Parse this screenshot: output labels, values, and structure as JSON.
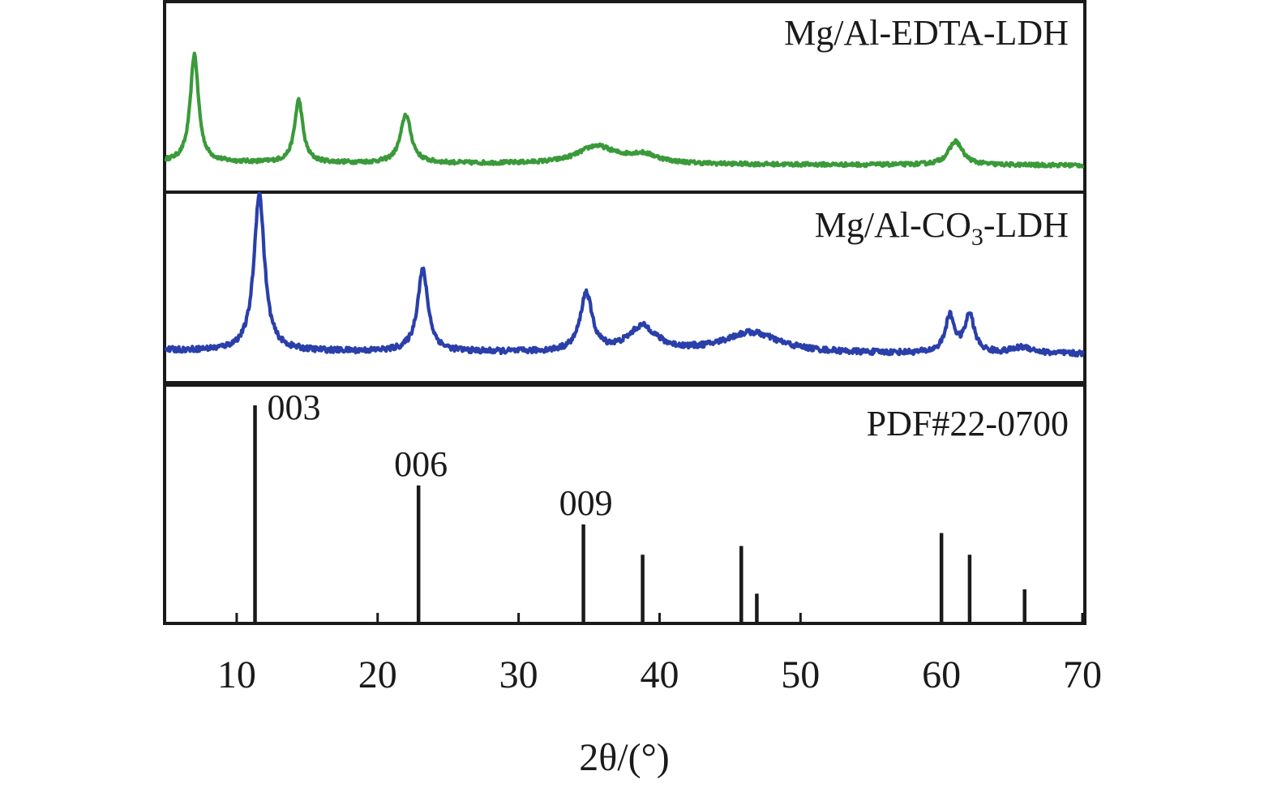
{
  "chart_data": {
    "type": "line",
    "xlabel": "2θ/(°)",
    "xlim": [
      5,
      70
    ],
    "x_ticks": [
      "10",
      "20",
      "30",
      "40",
      "50",
      "60",
      "70"
    ],
    "grid": false,
    "panels": [
      {
        "label": "Mg/Al-EDTA-LDH",
        "color": "#3a9a3a",
        "background": 0.04,
        "peaks": [
          {
            "x": 7.0,
            "height": 1.0,
            "width": 0.35
          },
          {
            "x": 14.4,
            "height": 0.58,
            "width": 0.35
          },
          {
            "x": 22.0,
            "height": 0.45,
            "width": 0.45
          },
          {
            "x": 35.5,
            "height": 0.16,
            "width": 1.6
          },
          {
            "x": 38.8,
            "height": 0.08,
            "width": 1.4
          },
          {
            "x": 61.0,
            "height": 0.22,
            "width": 0.6
          }
        ]
      },
      {
        "label_main": "Mg/Al-CO",
        "label_sub": "3",
        "label_tail": "-LDH",
        "color": "#2a3faa",
        "background": 0.03,
        "peaks": [
          {
            "x": 11.6,
            "height": 1.0,
            "width": 0.45
          },
          {
            "x": 23.2,
            "height": 0.52,
            "width": 0.45
          },
          {
            "x": 34.8,
            "height": 0.37,
            "width": 0.5
          },
          {
            "x": 38.8,
            "height": 0.16,
            "width": 1.2
          },
          {
            "x": 46.5,
            "height": 0.13,
            "width": 2.4
          },
          {
            "x": 60.6,
            "height": 0.23,
            "width": 0.4
          },
          {
            "x": 62.0,
            "height": 0.24,
            "width": 0.4
          },
          {
            "x": 65.8,
            "height": 0.04,
            "width": 0.9
          }
        ]
      }
    ],
    "reference": {
      "label": "PDF#22-0700",
      "lines": [
        {
          "x": 11.3,
          "intensity": 1.0,
          "hkl": "003"
        },
        {
          "x": 22.9,
          "intensity": 0.63,
          "hkl": "006"
        },
        {
          "x": 34.6,
          "intensity": 0.45,
          "hkl": "009"
        },
        {
          "x": 38.8,
          "intensity": 0.31,
          "hkl": ""
        },
        {
          "x": 45.8,
          "intensity": 0.35,
          "hkl": ""
        },
        {
          "x": 46.9,
          "intensity": 0.13,
          "hkl": ""
        },
        {
          "x": 60.0,
          "intensity": 0.41,
          "hkl": ""
        },
        {
          "x": 62.0,
          "intensity": 0.31,
          "hkl": ""
        },
        {
          "x": 65.9,
          "intensity": 0.15,
          "hkl": ""
        }
      ]
    }
  }
}
